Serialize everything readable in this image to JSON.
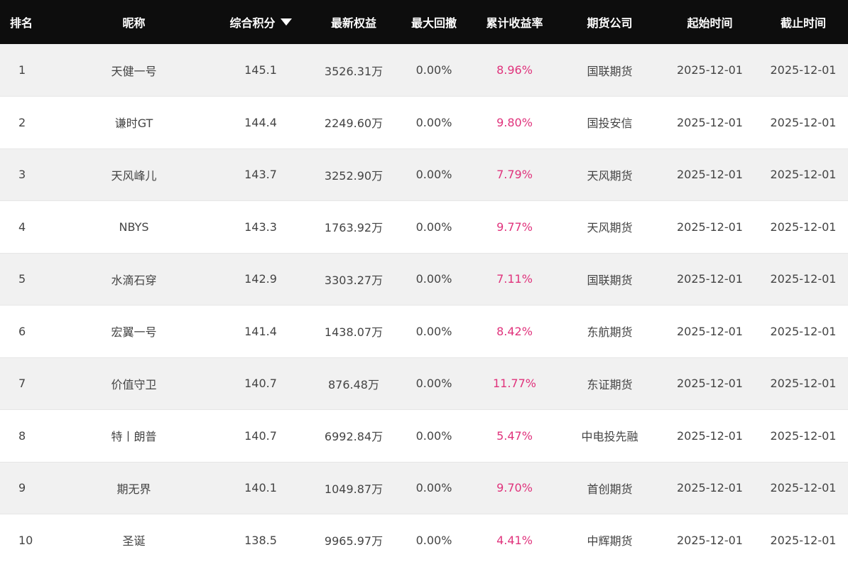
{
  "table": {
    "headers": {
      "rank": "排名",
      "nickname": "昵称",
      "score": "综合积分",
      "equity": "最新权益",
      "drawdown": "最大回撤",
      "return_rate": "累计收益率",
      "company": "期货公司",
      "start": "起始时间",
      "end": "截止时间"
    },
    "sort": {
      "column": "score",
      "direction": "descending"
    },
    "colors": {
      "header_bg": "#0d0d0d",
      "header_text": "#ffffff",
      "row_odd": "#f1f1f1",
      "row_even": "#ffffff",
      "text": "#444444",
      "return_rate": "#e0337c"
    },
    "rows": [
      {
        "rank": "1",
        "nickname": "天健一号",
        "score": "145.1",
        "equity": "3526.31万",
        "drawdown": "0.00%",
        "return_rate": "8.96%",
        "company": "国联期货",
        "start": "2025-12-01",
        "end": "2025-12-01"
      },
      {
        "rank": "2",
        "nickname": "谦时GT",
        "score": "144.4",
        "equity": "2249.60万",
        "drawdown": "0.00%",
        "return_rate": "9.80%",
        "company": "国投安信",
        "start": "2025-12-01",
        "end": "2025-12-01"
      },
      {
        "rank": "3",
        "nickname": "天风峰儿",
        "score": "143.7",
        "equity": "3252.90万",
        "drawdown": "0.00%",
        "return_rate": "7.79%",
        "company": "天风期货",
        "start": "2025-12-01",
        "end": "2025-12-01"
      },
      {
        "rank": "4",
        "nickname": "NBYS",
        "score": "143.3",
        "equity": "1763.92万",
        "drawdown": "0.00%",
        "return_rate": "9.77%",
        "company": "天风期货",
        "start": "2025-12-01",
        "end": "2025-12-01"
      },
      {
        "rank": "5",
        "nickname": "水滴石穿",
        "score": "142.9",
        "equity": "3303.27万",
        "drawdown": "0.00%",
        "return_rate": "7.11%",
        "company": "国联期货",
        "start": "2025-12-01",
        "end": "2025-12-01"
      },
      {
        "rank": "6",
        "nickname": "宏翼一号",
        "score": "141.4",
        "equity": "1438.07万",
        "drawdown": "0.00%",
        "return_rate": "8.42%",
        "company": "东航期货",
        "start": "2025-12-01",
        "end": "2025-12-01"
      },
      {
        "rank": "7",
        "nickname": "价值守卫",
        "score": "140.7",
        "equity": "876.48万",
        "drawdown": "0.00%",
        "return_rate": "11.77%",
        "company": "东证期货",
        "start": "2025-12-01",
        "end": "2025-12-01"
      },
      {
        "rank": "8",
        "nickname": "特丨朗普",
        "score": "140.7",
        "equity": "6992.84万",
        "drawdown": "0.00%",
        "return_rate": "5.47%",
        "company": "中电投先融",
        "start": "2025-12-01",
        "end": "2025-12-01"
      },
      {
        "rank": "9",
        "nickname": "期无界",
        "score": "140.1",
        "equity": "1049.87万",
        "drawdown": "0.00%",
        "return_rate": "9.70%",
        "company": "首创期货",
        "start": "2025-12-01",
        "end": "2025-12-01"
      },
      {
        "rank": "10",
        "nickname": "圣诞",
        "score": "138.5",
        "equity": "9965.97万",
        "drawdown": "0.00%",
        "return_rate": "4.41%",
        "company": "中辉期货",
        "start": "2025-12-01",
        "end": "2025-12-01"
      }
    ]
  }
}
